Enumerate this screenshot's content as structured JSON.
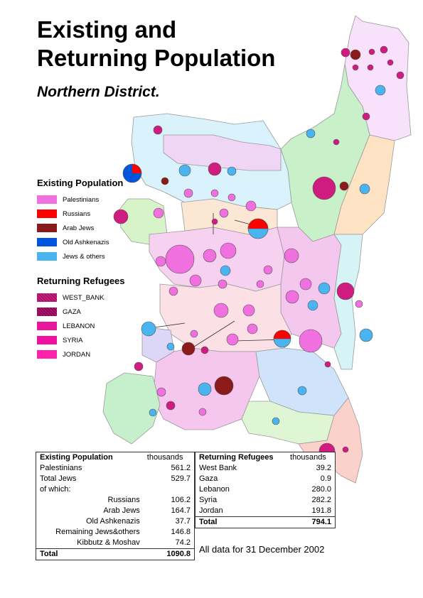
{
  "title_lines": [
    "Existing and",
    "Returning Population"
  ],
  "subtitle": "Northern District.",
  "colors": {
    "palestinians": "#f070e0",
    "russians": "#ff0000",
    "arab_jews": "#8b1a1a",
    "old_ashkenazis": "#0055dd",
    "jews_others": "#4ab4f0",
    "west_bank": "#d01c80",
    "gaza": "#b0106e",
    "lebanon": "#e8189a",
    "syria": "#f010a0",
    "jordan": "#ff22aa"
  },
  "legend_existing": {
    "title": "Existing Population",
    "items": [
      {
        "label": "Palestinians",
        "color": "#f070e0",
        "hatch": false
      },
      {
        "label": "Russians",
        "color": "#ff0000",
        "hatch": false
      },
      {
        "label": "Arab Jews",
        "color": "#8b1a1a",
        "hatch": false
      },
      {
        "label": "Old Ashkenazis",
        "color": "#0055dd",
        "hatch": false
      },
      {
        "label": "Jews & others",
        "color": "#4ab4f0",
        "hatch": false
      }
    ]
  },
  "legend_returning": {
    "title": "Returning Refugees",
    "items": [
      {
        "label": "WEST_BANK",
        "color": "#d01c80",
        "hatch": true
      },
      {
        "label": "GAZA",
        "color": "#b0106e",
        "hatch": true
      },
      {
        "label": "LEBANON",
        "color": "#e8189a",
        "hatch": false
      },
      {
        "label": "SYRIA",
        "color": "#f010a0",
        "hatch": false
      },
      {
        "label": "JORDAN",
        "color": "#ff22aa",
        "hatch": false
      }
    ]
  },
  "table_existing": {
    "title": "Existing Population",
    "unit": "thousands",
    "rows": [
      {
        "label": "Palestinians",
        "value": "561.2"
      },
      {
        "label": "Total Jews",
        "value": "529.7"
      },
      {
        "label": "of which:",
        "value": ""
      },
      {
        "label": "Russians",
        "value": "106.2"
      },
      {
        "label": "Arab Jews",
        "value": "164.7"
      },
      {
        "label": "Old Ashkenazis",
        "value": "37.7"
      },
      {
        "label": "Remaining Jews&others",
        "value": "146.8"
      },
      {
        "label": "Kibbutz & Moshav",
        "value": "74.2"
      }
    ],
    "total_label": "Total",
    "total_value": "1090.8"
  },
  "table_returning": {
    "title": "Returning Refugees",
    "unit": "thousands",
    "rows": [
      {
        "label": "West Bank",
        "value": "39.2"
      },
      {
        "label": "Gaza",
        "value": "0.9"
      },
      {
        "label": "Lebanon",
        "value": "280.0"
      },
      {
        "label": "Syria",
        "value": "282.2"
      },
      {
        "label": "Jordan",
        "value": "191.8"
      }
    ],
    "total_label": "Total",
    "total_value": "794.1"
  },
  "footer_note": "All data for 31 December 2002"
}
